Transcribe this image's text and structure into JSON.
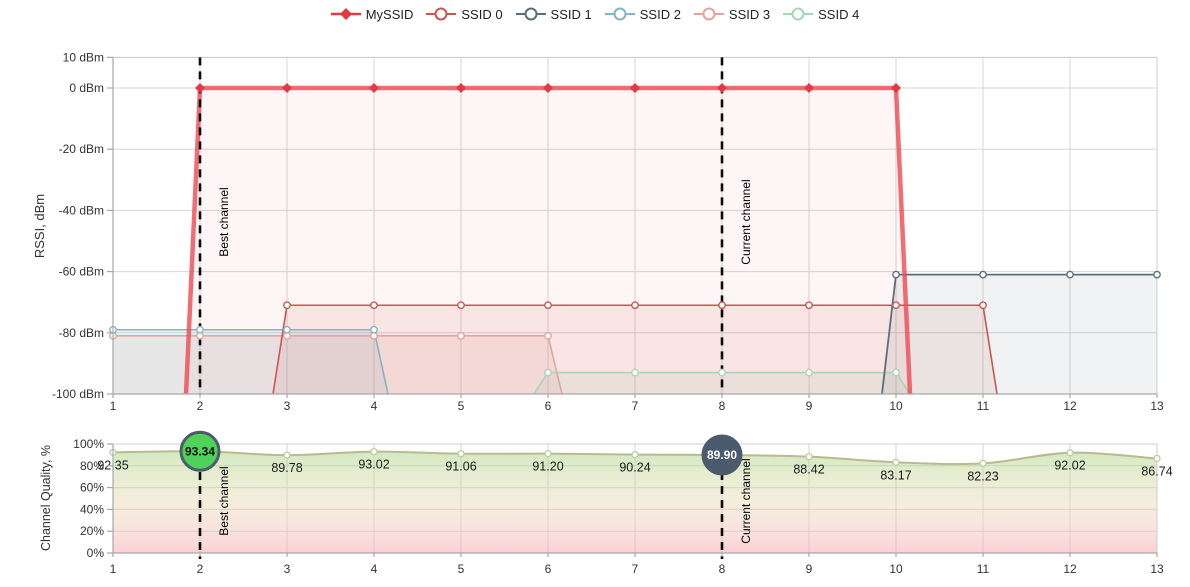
{
  "legend": {
    "items": [
      {
        "label": "MySSID",
        "marker": "diamond",
        "color": "#e23a45"
      },
      {
        "label": "SSID 0",
        "marker": "circle",
        "color": "#c9574f"
      },
      {
        "label": "SSID 1",
        "marker": "circle",
        "color": "#5b6e7c"
      },
      {
        "label": "SSID 2",
        "marker": "circle",
        "color": "#82b5c4"
      },
      {
        "label": "SSID 3",
        "marker": "circle",
        "color": "#e2a49c"
      },
      {
        "label": "SSID 4",
        "marker": "circle",
        "color": "#a6d6b8"
      }
    ]
  },
  "chart_data": [
    {
      "type": "area",
      "name": "rssi-spectrum",
      "ylabel": "RSSI, dBm",
      "xlim": [
        1,
        13
      ],
      "ylim": [
        -100,
        10
      ],
      "x_ticks": [
        1,
        2,
        3,
        4,
        5,
        6,
        7,
        8,
        9,
        10,
        11,
        12,
        13
      ],
      "y_ticks": [
        10,
        0,
        -20,
        -40,
        -60,
        -80,
        -100
      ],
      "y_tick_suffix": " dBm",
      "grid": true,
      "legend_position": "top-center",
      "annotations": [
        {
          "channel": 2,
          "label": "Best channel"
        },
        {
          "channel": 8,
          "label": "Current channel"
        }
      ],
      "series": [
        {
          "name": "MySSID",
          "level_dbm": 0,
          "from_channel": 2,
          "to_channel": 10,
          "starts_at_edge": false,
          "ends_at_edge": false,
          "marker": "diamond",
          "color": "#e23a45",
          "line_color": "#ee4a52",
          "line_width": 4.5,
          "line_opacity": 0.8,
          "fill": "rgba(238,74,82,0.05)",
          "z": 6
        },
        {
          "name": "SSID 0",
          "level_dbm": -71,
          "from_channel": 3,
          "to_channel": 11,
          "starts_at_edge": false,
          "ends_at_edge": false,
          "marker": "circle",
          "color": "#c9574f",
          "line_color": "#c9574f",
          "line_width": 1.6,
          "line_opacity": 1,
          "fill": "rgba(201,87,79,0.10)",
          "z": 5
        },
        {
          "name": "SSID 1",
          "level_dbm": -61,
          "from_channel": 10,
          "to_channel": 13,
          "starts_at_edge": false,
          "ends_at_edge": true,
          "marker": "circle",
          "color": "#5b6e7c",
          "line_color": "#5b6e7c",
          "line_width": 1.8,
          "line_opacity": 1,
          "fill": "rgba(91,110,124,0.09)",
          "z": 4
        },
        {
          "name": "SSID 2",
          "level_dbm": -79,
          "from_channel": 1,
          "to_channel": 4,
          "starts_at_edge": true,
          "ends_at_edge": false,
          "marker": "circle",
          "color": "#82b5c4",
          "line_color": "#82b5c4",
          "line_width": 1.6,
          "line_opacity": 1,
          "fill": "rgba(130,181,196,0.15)",
          "z": 2
        },
        {
          "name": "SSID 3",
          "level_dbm": -81,
          "from_channel": 1,
          "to_channel": 6,
          "starts_at_edge": true,
          "ends_at_edge": false,
          "marker": "circle",
          "color": "#e2a49c",
          "line_color": "#e2a49c",
          "line_width": 1.6,
          "line_opacity": 1,
          "fill": "rgba(226,164,156,0.16)",
          "z": 1
        },
        {
          "name": "SSID 4",
          "level_dbm": -93,
          "from_channel": 6,
          "to_channel": 10,
          "starts_at_edge": false,
          "ends_at_edge": false,
          "marker": "circle",
          "color": "#a6d6b8",
          "line_color": "#a6d6b8",
          "line_width": 1.6,
          "line_opacity": 1,
          "fill": "rgba(166,214,184,0.18)",
          "z": 3
        }
      ]
    },
    {
      "type": "area",
      "name": "channel-quality",
      "ylabel": "Channel Quality, %",
      "xlim": [
        1,
        13
      ],
      "ylim": [
        0,
        100
      ],
      "x_ticks": [
        1,
        2,
        3,
        4,
        5,
        6,
        7,
        8,
        9,
        10,
        11,
        12,
        13
      ],
      "y_ticks": [
        0,
        20,
        40,
        60,
        80,
        100
      ],
      "y_tick_suffix": "%",
      "grid": true,
      "x": [
        1,
        2,
        3,
        4,
        5,
        6,
        7,
        8,
        9,
        10,
        11,
        12,
        13
      ],
      "values": [
        92.35,
        93.34,
        89.78,
        93.02,
        91.06,
        91.2,
        90.24,
        89.9,
        88.42,
        83.17,
        82.23,
        92.02,
        86.74
      ],
      "value_labels": [
        "92.35",
        "93.34",
        "89.78",
        "93.02",
        "91.06",
        "91.20",
        "90.24",
        "89.90",
        "88.42",
        "83.17",
        "82.23",
        "92.02",
        "86.74"
      ],
      "line_color": "#bdb88f",
      "marker_stroke": "#b5cfa0",
      "gradient_top_color": "#97d37a",
      "gradient_bottom_color": "#f6a6ac",
      "best_channel": {
        "channel": 2,
        "label": "Best channel",
        "value_label": "93.34",
        "fill": "#4ed358",
        "stroke": "#4d5d6c",
        "text_color": "#111111"
      },
      "current_channel": {
        "channel": 8,
        "label": "Current channel",
        "value_label": "89.90",
        "fill": "#4b5b6d",
        "stroke": "#4b5b6d",
        "text_color": "#ffffff"
      },
      "annotations": [
        {
          "channel": 2,
          "label": "Best channel"
        },
        {
          "channel": 8,
          "label": "Current channel"
        }
      ]
    }
  ],
  "style": {
    "grid_color": "#d6d6d6",
    "plot_border_color": "#cfcfcf",
    "axis_color": "#a8a8a8",
    "tick_label_color": "#333333",
    "annotation_line_color": "#0a0a0a",
    "value_label_color": "#1a1a1a"
  }
}
